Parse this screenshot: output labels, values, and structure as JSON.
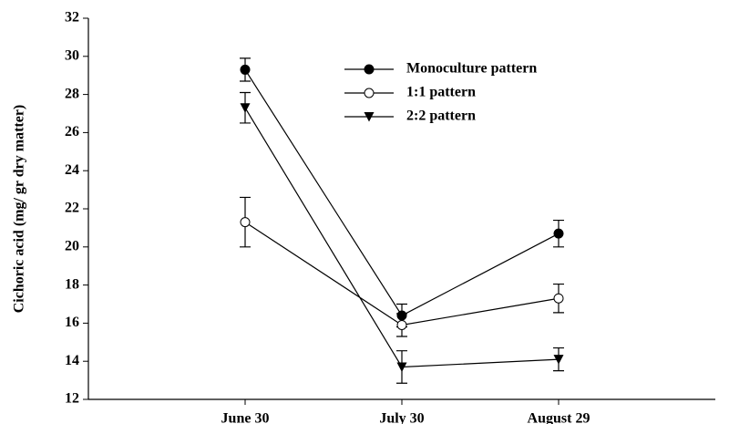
{
  "chart_data": {
    "type": "line",
    "y_label": "Cichoric acid (mg/ gr dry matter)",
    "categories": [
      "June 30",
      "July 30",
      "August 29"
    ],
    "ylim": [
      12,
      32
    ],
    "yticks": [
      12,
      14,
      16,
      18,
      20,
      22,
      24,
      26,
      28,
      30,
      32
    ],
    "series": [
      {
        "name": "Monoculture pattern",
        "color": "#000000",
        "marker": "filled-circle",
        "values": [
          29.3,
          16.4,
          20.7
        ],
        "errors": [
          0.6,
          0.6,
          0.7
        ]
      },
      {
        "name": "1:1 pattern",
        "color": "#000000",
        "marker": "open-circle",
        "values": [
          21.3,
          15.9,
          17.3
        ],
        "errors": [
          1.3,
          0.6,
          0.75
        ]
      },
      {
        "name": "2:2 pattern",
        "color": "#000000",
        "marker": "triangle-down",
        "values": [
          27.3,
          13.7,
          14.1
        ],
        "errors": [
          0.8,
          0.85,
          0.6
        ]
      }
    ]
  }
}
